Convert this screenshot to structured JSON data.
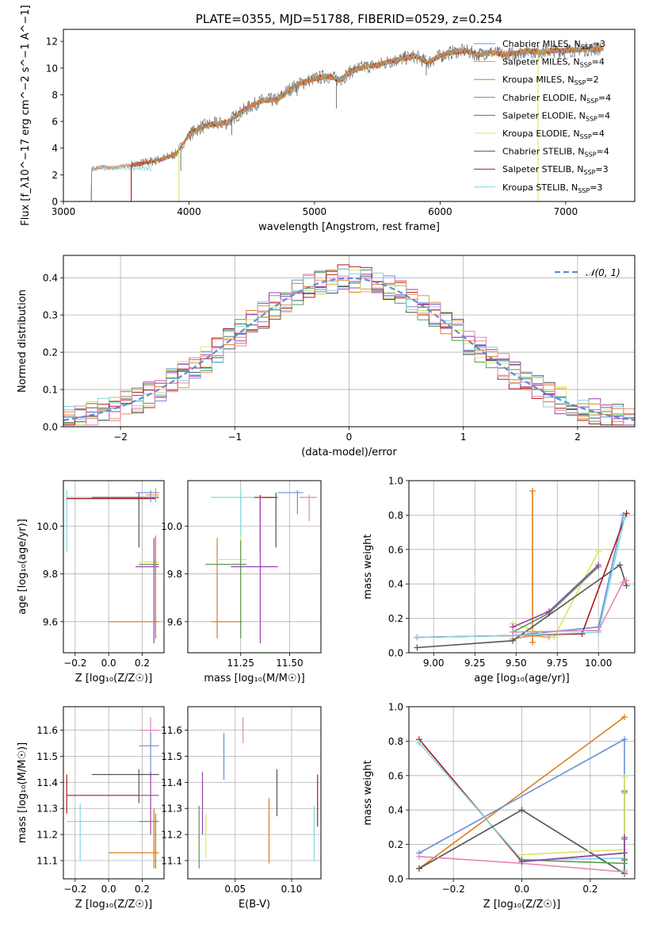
{
  "colors": {
    "chabrier_miles": "#6a8fd8",
    "salpeter_miles": "#f08f4f",
    "kroupa_miles": "#e07b1a",
    "chabrier_elodie": "#5a9a55",
    "salpeter_elodie": "#9b3fb5",
    "kroupa_elodie": "#d8e860",
    "chabrier_stelib": "#555555",
    "salpeter_stelib": "#b01818",
    "kroupa_stelib": "#7fd7e0",
    "pink": "#e386bb",
    "normal_curve": "#5b8dd6"
  },
  "chart_data": [
    {
      "id": "spectrum",
      "type": "line",
      "title": "PLATE=0355, MJD=51788, FIBERID=0529, z=0.254",
      "xlabel": "wavelength [Angstrom, rest frame]",
      "ylabel": "Flux [f_λ10^−17 erg cm^−2 s^−1 A^−1]",
      "xlim": [
        3000,
        7550
      ],
      "ylim": [
        0,
        12.9
      ],
      "xticks": [
        "3000",
        "4000",
        "5000",
        "6000",
        "7000"
      ],
      "yticks": [
        "0",
        "2",
        "4",
        "6",
        "8",
        "10",
        "12"
      ],
      "legend_position": "right",
      "legend": [
        {
          "label": "Chabrier MILES, N",
          "sub": "SSP",
          "suffix": "=3",
          "color_key": "chabrier_miles"
        },
        {
          "label": "Salpeter MILES, N",
          "sub": "SSP",
          "suffix": "=4",
          "color_key": "salpeter_miles"
        },
        {
          "label": "Kroupa MILES, N",
          "sub": "SSP",
          "suffix": "=2",
          "color_key": "kroupa_miles"
        },
        {
          "label": "Chabrier ELODIE, N",
          "sub": "SSP",
          "suffix": "=4",
          "color_key": "chabrier_elodie"
        },
        {
          "label": "Salpeter ELODIE, N",
          "sub": "SSP",
          "suffix": "=4",
          "color_key": "salpeter_elodie"
        },
        {
          "label": "Kroupa ELODIE, N",
          "sub": "SSP",
          "suffix": "=4",
          "color_key": "kroupa_elodie"
        },
        {
          "label": "Chabrier STELIB, N",
          "sub": "SSP",
          "suffix": "=4",
          "color_key": "chabrier_stelib"
        },
        {
          "label": "Salpeter STELIB, N",
          "sub": "SSP",
          "suffix": "=3",
          "color_key": "salpeter_stelib"
        },
        {
          "label": "Kroupa STELIB, N",
          "sub": "SSP",
          "suffix": "=3",
          "color_key": "kroupa_stelib"
        }
      ],
      "continuum": [
        [
          3220,
          0.0
        ],
        [
          3225,
          2.4
        ],
        [
          3300,
          2.6
        ],
        [
          3400,
          2.5
        ],
        [
          3500,
          2.7
        ],
        [
          3600,
          2.8
        ],
        [
          3700,
          3.0
        ],
        [
          3800,
          3.2
        ],
        [
          3900,
          3.6
        ],
        [
          4000,
          5.0
        ],
        [
          4100,
          5.6
        ],
        [
          4200,
          5.8
        ],
        [
          4300,
          5.9
        ],
        [
          4400,
          6.6
        ],
        [
          4500,
          7.2
        ],
        [
          4600,
          7.6
        ],
        [
          4700,
          7.6
        ],
        [
          4800,
          8.4
        ],
        [
          4900,
          8.9
        ],
        [
          5000,
          9.2
        ],
        [
          5100,
          9.4
        ],
        [
          5200,
          9.1
        ],
        [
          5300,
          9.8
        ],
        [
          5400,
          10.1
        ],
        [
          5500,
          10.2
        ],
        [
          5600,
          10.5
        ],
        [
          5700,
          10.7
        ],
        [
          5800,
          10.9
        ],
        [
          5900,
          10.4
        ],
        [
          6000,
          10.9
        ],
        [
          6100,
          11.2
        ],
        [
          6200,
          11.3
        ],
        [
          6300,
          11.0
        ],
        [
          6400,
          11.2
        ],
        [
          6500,
          11.0
        ],
        [
          6600,
          11.1
        ],
        [
          6700,
          11.3
        ],
        [
          6800,
          11.2
        ],
        [
          6900,
          11.3
        ],
        [
          7000,
          11.3
        ],
        [
          7100,
          11.4
        ],
        [
          7200,
          11.4
        ],
        [
          7300,
          11.5
        ]
      ],
      "drop_lines": [
        {
          "x": 3540,
          "color_key": "salpeter_stelib"
        },
        {
          "x": 3920,
          "color_key": "kroupa_elodie"
        },
        {
          "x": 6780,
          "color_key": "kroupa_elodie"
        }
      ]
    },
    {
      "id": "residuals",
      "type": "histogram",
      "xlabel": "(data-model)/error",
      "ylabel": "Normed distribution",
      "xlim": [
        -2.5,
        2.5
      ],
      "ylim": [
        0,
        0.46
      ],
      "xticks": [
        "−2",
        "−1",
        "0",
        "1",
        "2"
      ],
      "yticks": [
        "0.0",
        "0.1",
        "0.2",
        "0.3",
        "0.4"
      ],
      "grid": true,
      "legend_position": "top-right",
      "legend_label": "𝒩(0, 1)",
      "bin_width": 0.1
    },
    {
      "id": "age_vs_Z",
      "type": "errorbar",
      "xlabel": "Z [log₁₀(Z/Z☉)]",
      "ylabel": "age  [log₁₀(age/yr)]",
      "xlim": [
        -0.27,
        0.33
      ],
      "ylim": [
        9.47,
        10.19
      ],
      "xticks": [
        "−0.2",
        "0.0",
        "0.2"
      ],
      "yticks": [
        "9.6",
        "9.8",
        "10.0"
      ],
      "grid": true,
      "points": [
        {
          "color_key": "kroupa_stelib",
          "x": -0.25,
          "y": 10.12,
          "xlo": -0.25,
          "xhi": 0.2,
          "ylo": 9.89,
          "yhi": 10.15
        },
        {
          "color_key": "salpeter_stelib",
          "x": -0.25,
          "y": 10.115,
          "xlo": -0.25,
          "xhi": 0.28,
          "ylo": 10.115,
          "yhi": 10.115
        },
        {
          "color_key": "chabrier_stelib",
          "x": 0.18,
          "y": 10.12,
          "xlo": -0.1,
          "xhi": 0.3,
          "ylo": 9.91,
          "yhi": 10.14
        },
        {
          "color_key": "chabrier_miles",
          "x": 0.25,
          "y": 10.14,
          "xlo": 0.16,
          "xhi": 0.3,
          "ylo": 10.1,
          "yhi": 10.15
        },
        {
          "color_key": "salpeter_miles",
          "x": 0.28,
          "y": 10.13,
          "xlo": 0.22,
          "xhi": 0.3,
          "ylo": 10.1,
          "yhi": 10.16
        },
        {
          "color_key": "kroupa_elodie",
          "x": 0.28,
          "y": 9.85,
          "xlo": 0.18,
          "xhi": 0.3,
          "ylo": 9.56,
          "yhi": 9.96
        },
        {
          "color_key": "salpeter_elodie",
          "x": 0.27,
          "y": 9.83,
          "xlo": 0.16,
          "xhi": 0.3,
          "ylo": 9.51,
          "yhi": 9.95
        },
        {
          "color_key": "chabrier_elodie",
          "x": 0.28,
          "y": 9.84,
          "xlo": 0.18,
          "xhi": 0.3,
          "ylo": 9.53,
          "yhi": 9.94
        },
        {
          "color_key": "kroupa_miles",
          "x": 0.28,
          "y": 9.6,
          "xlo": 0.0,
          "xhi": 0.3,
          "ylo": 9.56,
          "yhi": 9.96
        }
      ]
    },
    {
      "id": "age_vs_mass",
      "type": "errorbar",
      "xlabel": "mass [log₁₀(M/M☉)]",
      "ylabel": "",
      "xlim": [
        10.98,
        11.66
      ],
      "ylim": [
        9.47,
        10.19
      ],
      "xticks": [
        "11.25",
        "11.50"
      ],
      "yticks": [
        "9.6",
        "9.8",
        "10.0"
      ],
      "grid": true,
      "points": [
        {
          "color_key": "kroupa_stelib",
          "x": 11.25,
          "y": 10.12,
          "xlo": 11.1,
          "xhi": 11.32,
          "ylo": 9.89,
          "yhi": 10.15
        },
        {
          "color_key": "chabrier_stelib",
          "x": 11.43,
          "y": 10.12,
          "xlo": 11.32,
          "xhi": 11.44,
          "ylo": 9.91,
          "yhi": 10.14
        },
        {
          "color_key": "salpeter_stelib",
          "x": 11.35,
          "y": 10.12,
          "xlo": 11.35,
          "xhi": 11.42,
          "ylo": 9.89,
          "yhi": 10.13
        },
        {
          "color_key": "chabrier_miles",
          "x": 11.54,
          "y": 10.14,
          "xlo": 11.44,
          "xhi": 11.57,
          "ylo": 10.05,
          "yhi": 10.15
        },
        {
          "color_key": "pink",
          "x": 11.6,
          "y": 10.12,
          "xlo": 11.55,
          "xhi": 11.64,
          "ylo": 10.02,
          "yhi": 10.13
        },
        {
          "color_key": "kroupa_miles",
          "x": 11.13,
          "y": 9.6,
          "xlo": 11.1,
          "xhi": 11.26,
          "ylo": 9.53,
          "yhi": 9.95
        },
        {
          "color_key": "kroupa_elodie",
          "x": 11.25,
          "y": 9.86,
          "xlo": 11.13,
          "xhi": 11.28,
          "ylo": 9.55,
          "yhi": 9.96
        },
        {
          "color_key": "chabrier_elodie",
          "x": 11.25,
          "y": 9.84,
          "xlo": 11.07,
          "xhi": 11.28,
          "ylo": 9.53,
          "yhi": 9.94
        },
        {
          "color_key": "salpeter_elodie",
          "x": 11.35,
          "y": 9.83,
          "xlo": 11.2,
          "xhi": 11.44,
          "ylo": 9.51,
          "yhi": 10.12
        }
      ]
    },
    {
      "id": "weight_vs_age",
      "type": "line",
      "xlabel": "age  [log₁₀(age/yr)]",
      "ylabel": "mass weight",
      "xlim": [
        8.85,
        10.22
      ],
      "ylim": [
        0,
        1.0
      ],
      "xticks": [
        "9.00",
        "9.25",
        "9.50",
        "9.75",
        "10.00"
      ],
      "yticks": [
        "0.0",
        "0.2",
        "0.4",
        "0.6",
        "0.8",
        "1.0"
      ],
      "grid": true,
      "series": [
        {
          "color_key": "chabrier_miles",
          "x": [
            8.9,
            9.48,
            10.0,
            10.15
          ],
          "y": [
            0.09,
            0.1,
            0.15,
            0.8
          ]
        },
        {
          "color_key": "kroupa_miles",
          "x": [
            9.6,
            9.6
          ],
          "y": [
            0.06,
            0.94
          ]
        },
        {
          "color_key": "salpeter_miles",
          "x": [
            9.48,
            9.6,
            9.7
          ],
          "y": [
            0.08,
            0.1,
            0.09
          ]
        },
        {
          "color_key": "kroupa_elodie",
          "x": [
            9.48,
            9.73,
            10.0
          ],
          "y": [
            0.17,
            0.09,
            0.59
          ]
        },
        {
          "color_key": "chabrier_elodie",
          "x": [
            9.48,
            9.7,
            10.0
          ],
          "y": [
            0.12,
            0.23,
            0.5
          ]
        },
        {
          "color_key": "salpeter_elodie",
          "x": [
            9.48,
            9.7,
            10.0
          ],
          "y": [
            0.15,
            0.24,
            0.51
          ]
        },
        {
          "color_key": "chabrier_stelib",
          "x": [
            8.9,
            9.48,
            10.13,
            10.17
          ],
          "y": [
            0.03,
            0.07,
            0.51,
            0.39
          ]
        },
        {
          "color_key": "salpeter_stelib",
          "x": [
            8.9,
            9.48,
            9.9,
            10.17
          ],
          "y": [
            0.09,
            0.1,
            0.11,
            0.81
          ]
        },
        {
          "color_key": "kroupa_stelib",
          "x": [
            8.9,
            9.48,
            10.0,
            10.16
          ],
          "y": [
            0.09,
            0.1,
            0.12,
            0.79
          ]
        },
        {
          "color_key": "pink",
          "x": [
            9.48,
            10.0,
            10.15,
            10.17
          ],
          "y": [
            0.12,
            0.13,
            0.41,
            0.42
          ]
        }
      ]
    },
    {
      "id": "mass_vs_Z",
      "type": "errorbar",
      "xlabel": "Z [log₁₀(Z/Z☉)]",
      "ylabel": "mass [log₁₀(M/M☉)]",
      "xlim": [
        -0.27,
        0.33
      ],
      "ylim": [
        11.03,
        11.69
      ],
      "xticks": [
        "−0.2",
        "0.0",
        "0.2"
      ],
      "yticks": [
        "11.1",
        "11.2",
        "11.3",
        "11.4",
        "11.5",
        "11.6"
      ],
      "grid": true,
      "points": [
        {
          "color_key": "pink",
          "x": 0.25,
          "y": 11.6,
          "xlo": 0.18,
          "xhi": 0.3,
          "ylo": 11.55,
          "yhi": 11.65
        },
        {
          "color_key": "chabrier_miles",
          "x": 0.25,
          "y": 11.54,
          "xlo": 0.18,
          "xhi": 0.3,
          "ylo": 11.41,
          "yhi": 11.59
        },
        {
          "color_key": "chabrier_stelib",
          "x": 0.18,
          "y": 11.43,
          "xlo": -0.1,
          "xhi": 0.3,
          "ylo": 11.32,
          "yhi": 11.45
        },
        {
          "color_key": "salpeter_stelib",
          "x": -0.25,
          "y": 11.35,
          "xlo": -0.25,
          "xhi": 0.18,
          "ylo": 11.28,
          "yhi": 11.43
        },
        {
          "color_key": "salpeter_elodie",
          "x": 0.25,
          "y": 11.35,
          "xlo": 0.18,
          "xhi": 0.3,
          "ylo": 11.2,
          "yhi": 11.44
        },
        {
          "color_key": "kroupa_stelib",
          "x": -0.17,
          "y": 11.25,
          "xlo": -0.25,
          "xhi": 0.2,
          "ylo": 11.1,
          "yhi": 11.32
        },
        {
          "color_key": "kroupa_elodie",
          "x": 0.27,
          "y": 11.25,
          "xlo": 0.2,
          "xhi": 0.3,
          "ylo": 11.13,
          "yhi": 11.28
        },
        {
          "color_key": "chabrier_elodie",
          "x": 0.28,
          "y": 11.25,
          "xlo": 0.18,
          "xhi": 0.3,
          "ylo": 11.07,
          "yhi": 11.28
        },
        {
          "color_key": "kroupa_miles",
          "x": 0.27,
          "y": 11.13,
          "xlo": 0.0,
          "xhi": 0.3,
          "ylo": 11.07,
          "yhi": 11.3
        }
      ]
    },
    {
      "id": "mass_vs_ebv",
      "type": "errorbar",
      "xlabel": "E(B-V)",
      "ylabel": "",
      "xlim": [
        0.008,
        0.126
      ],
      "ylim": [
        11.03,
        11.69
      ],
      "xticks": [
        "0.05",
        "0.10"
      ],
      "yticks": [
        "11.1",
        "11.2",
        "11.3",
        "11.4",
        "11.5",
        "11.6"
      ],
      "grid": true,
      "points": [
        {
          "color_key": "chabrier_elodie",
          "x": 0.018,
          "y": 11.2,
          "xlo": 0.018,
          "xhi": 0.018,
          "ylo": 11.07,
          "yhi": 11.31
        },
        {
          "color_key": "salpeter_elodie",
          "x": 0.021,
          "y": 11.32,
          "xlo": 0.021,
          "xhi": 0.021,
          "ylo": 11.2,
          "yhi": 11.44
        },
        {
          "color_key": "kroupa_elodie",
          "x": 0.024,
          "y": 11.2,
          "xlo": 0.024,
          "xhi": 0.024,
          "ylo": 11.11,
          "yhi": 11.28
        },
        {
          "color_key": "chabrier_miles",
          "x": 0.04,
          "y": 11.5,
          "xlo": 0.04,
          "xhi": 0.04,
          "ylo": 11.41,
          "yhi": 11.59
        },
        {
          "color_key": "pink",
          "x": 0.057,
          "y": 11.6,
          "xlo": 0.057,
          "xhi": 0.057,
          "ylo": 11.55,
          "yhi": 11.65
        },
        {
          "color_key": "kroupa_miles",
          "x": 0.08,
          "y": 11.22,
          "xlo": 0.08,
          "xhi": 0.08,
          "ylo": 11.09,
          "yhi": 11.34
        },
        {
          "color_key": "chabrier_stelib",
          "x": 0.087,
          "y": 11.37,
          "xlo": 0.087,
          "xhi": 0.087,
          "ylo": 11.27,
          "yhi": 11.45
        },
        {
          "color_key": "kroupa_stelib",
          "x": 0.12,
          "y": 11.2,
          "xlo": 0.12,
          "xhi": 0.12,
          "ylo": 11.1,
          "yhi": 11.31
        },
        {
          "color_key": "salpeter_stelib",
          "x": 0.123,
          "y": 11.32,
          "xlo": 0.123,
          "xhi": 0.123,
          "ylo": 11.23,
          "yhi": 11.43
        }
      ]
    },
    {
      "id": "weight_vs_Z",
      "type": "line",
      "xlabel": "Z [log₁₀(Z/Z☉)]",
      "ylabel": "mass weight",
      "xlim": [
        -0.33,
        0.33
      ],
      "ylim": [
        0,
        1.0
      ],
      "xticks": [
        "−0.2",
        "0.0",
        "0.2"
      ],
      "yticks": [
        "0.0",
        "0.2",
        "0.4",
        "0.6",
        "0.8",
        "1.0"
      ],
      "grid": true,
      "series": [
        {
          "color_key": "kroupa_miles",
          "x": [
            -0.3,
            0.3
          ],
          "y": [
            0.06,
            0.94
          ]
        },
        {
          "color_key": "chabrier_miles",
          "x": [
            -0.3,
            0.3,
            0.3
          ],
          "y": [
            0.15,
            0.81,
            0.5
          ]
        },
        {
          "color_key": "salpeter_stelib",
          "x": [
            -0.3,
            0.0,
            0.3,
            0.3
          ],
          "y": [
            0.81,
            0.1,
            0.15,
            0.11
          ]
        },
        {
          "color_key": "kroupa_stelib",
          "x": [
            -0.3,
            0.0,
            0.3,
            0.3
          ],
          "y": [
            0.79,
            0.11,
            0.12,
            0.05
          ]
        },
        {
          "color_key": "chabrier_stelib",
          "x": [
            -0.3,
            0.0,
            0.3,
            0.3
          ],
          "y": [
            0.06,
            0.4,
            0.03,
            0.51
          ]
        },
        {
          "color_key": "pink",
          "x": [
            -0.3,
            0.0,
            0.3
          ],
          "y": [
            0.13,
            0.09,
            0.04
          ]
        },
        {
          "color_key": "kroupa_elodie",
          "x": [
            0.0,
            0.3,
            0.3
          ],
          "y": [
            0.14,
            0.17,
            0.59
          ]
        },
        {
          "color_key": "chabrier_elodie",
          "x": [
            0.0,
            0.3,
            0.3
          ],
          "y": [
            0.11,
            0.09,
            0.23
          ]
        },
        {
          "color_key": "salpeter_elodie",
          "x": [
            0.0,
            0.3,
            0.3
          ],
          "y": [
            0.1,
            0.15,
            0.24
          ]
        }
      ]
    }
  ]
}
